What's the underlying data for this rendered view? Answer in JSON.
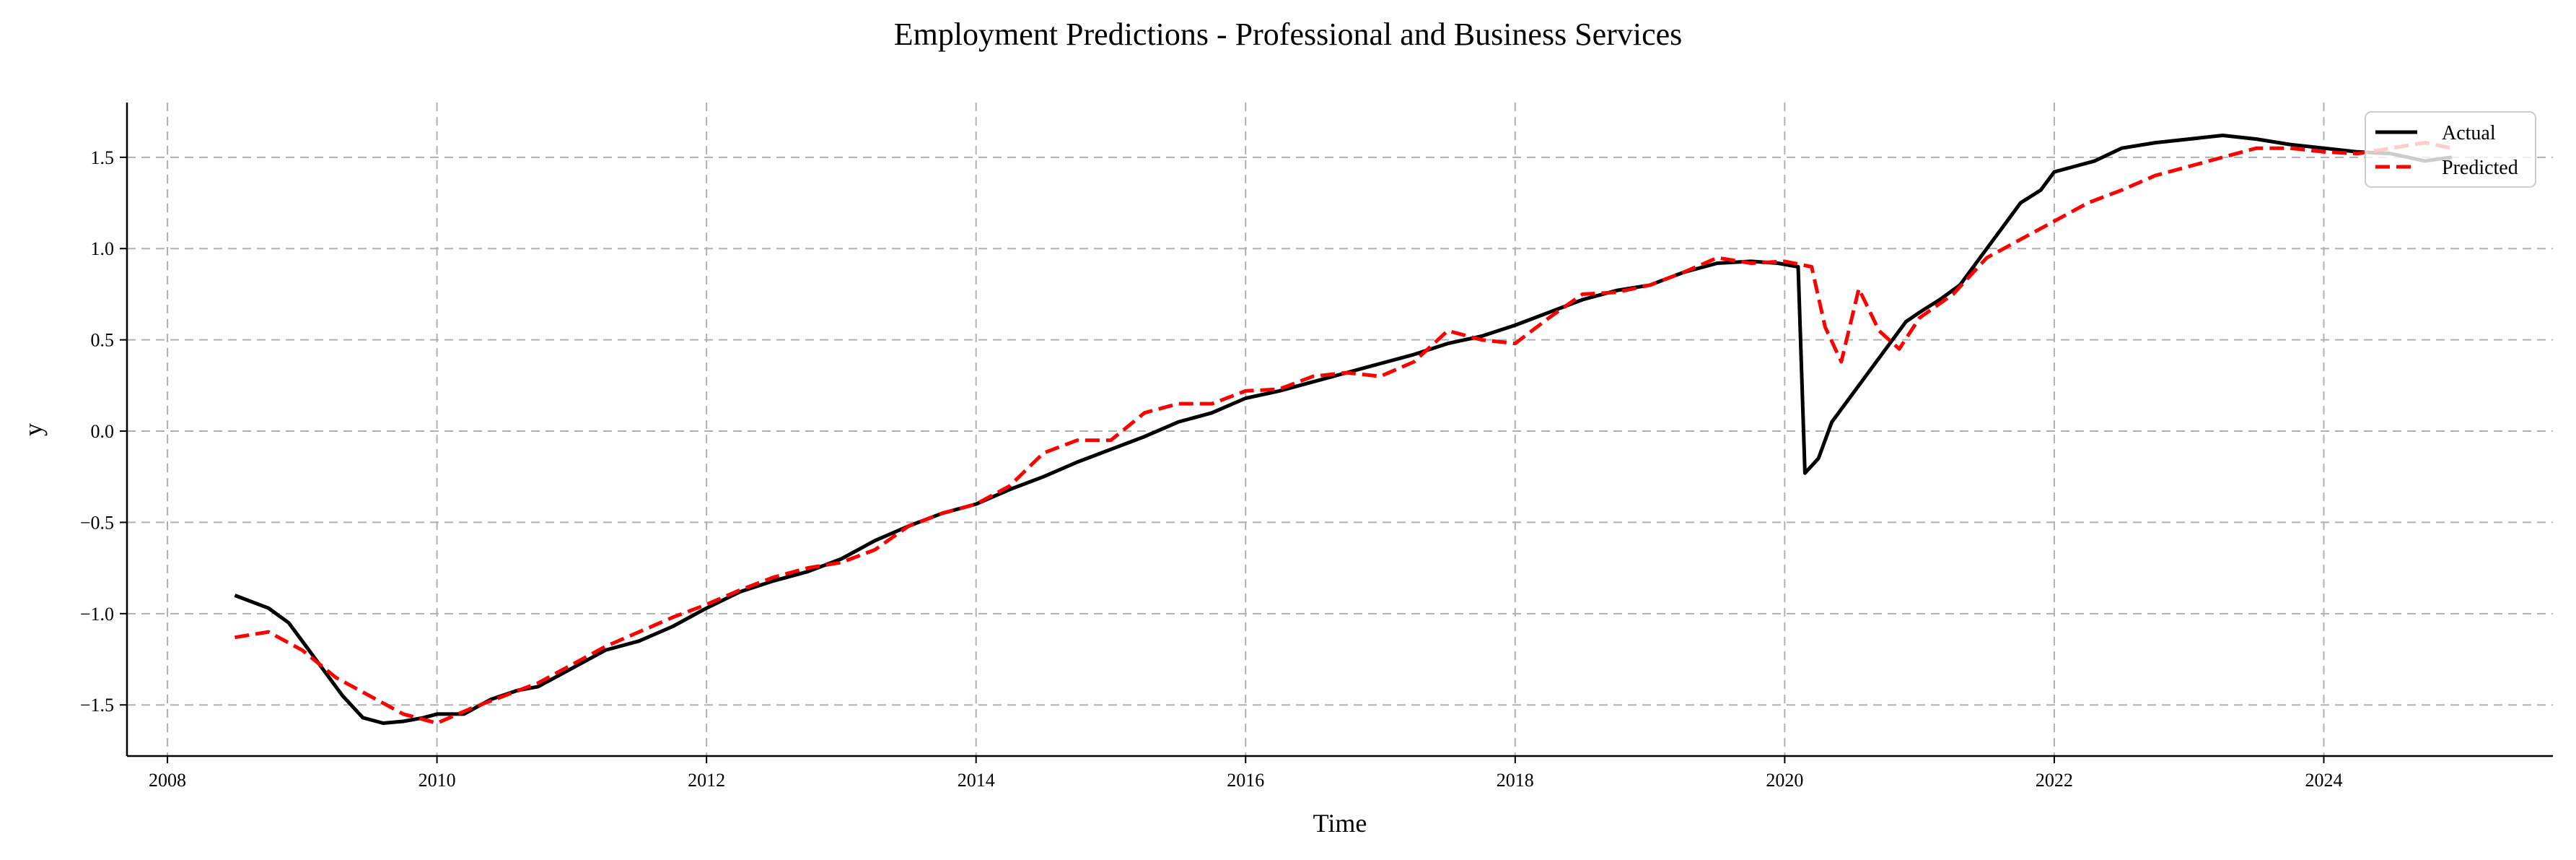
{
  "chart_data": {
    "type": "line",
    "title": "Employment Predictions - Professional and Business Services",
    "xlabel": "Time",
    "ylabel": "y",
    "xlim": [
      2007.7,
      2025.7
    ],
    "ylim": [
      -1.78,
      1.8
    ],
    "x_ticks": [
      2008,
      2010,
      2012,
      2014,
      2016,
      2018,
      2020,
      2022,
      2024
    ],
    "x_tick_labels": [
      "2008",
      "2010",
      "2012",
      "2014",
      "2016",
      "2018",
      "2020",
      "2022",
      "2024"
    ],
    "y_ticks": [
      -1.5,
      -1.0,
      -0.5,
      0.0,
      0.5,
      1.0,
      1.5
    ],
    "y_tick_labels": [
      "−1.5",
      "−1.0",
      "−0.5",
      "0.0",
      "0.5",
      "1.0",
      "1.5"
    ],
    "grid": true,
    "legend_position": "top-right",
    "series": [
      {
        "name": "Actual",
        "color": "#000000",
        "style": "solid",
        "x": [
          2008.5,
          2008.75,
          2008.9,
          2009.0,
          2009.15,
          2009.3,
          2009.45,
          2009.6,
          2009.75,
          2009.9,
          2010.0,
          2010.2,
          2010.4,
          2010.6,
          2010.75,
          2011.0,
          2011.25,
          2011.5,
          2011.75,
          2012.0,
          2012.25,
          2012.5,
          2012.75,
          2013.0,
          2013.25,
          2013.5,
          2013.75,
          2014.0,
          2014.25,
          2014.5,
          2014.75,
          2015.0,
          2015.25,
          2015.5,
          2015.75,
          2016.0,
          2016.25,
          2016.5,
          2016.75,
          2017.0,
          2017.25,
          2017.5,
          2017.75,
          2018.0,
          2018.25,
          2018.5,
          2018.75,
          2019.0,
          2019.25,
          2019.5,
          2019.75,
          2019.95,
          2020.1,
          2020.15,
          2020.25,
          2020.35,
          2020.45,
          2020.6,
          2020.75,
          2020.9,
          2021.0,
          2021.15,
          2021.3,
          2021.5,
          2021.6,
          2021.75,
          2021.9,
          2022.0,
          2022.15,
          2022.3,
          2022.5,
          2022.75,
          2023.0,
          2023.25,
          2023.5,
          2023.75,
          2024.0,
          2024.25,
          2024.5,
          2024.75,
          2024.95
        ],
        "values": [
          -0.9,
          -0.97,
          -1.05,
          -1.15,
          -1.3,
          -1.45,
          -1.57,
          -1.6,
          -1.59,
          -1.57,
          -1.55,
          -1.55,
          -1.47,
          -1.42,
          -1.4,
          -1.3,
          -1.2,
          -1.15,
          -1.07,
          -0.97,
          -0.88,
          -0.82,
          -0.77,
          -0.7,
          -0.6,
          -0.52,
          -0.45,
          -0.4,
          -0.32,
          -0.25,
          -0.17,
          -0.1,
          -0.03,
          0.05,
          0.1,
          0.18,
          0.22,
          0.27,
          0.32,
          0.37,
          0.42,
          0.48,
          0.52,
          0.58,
          0.65,
          0.72,
          0.77,
          0.8,
          0.87,
          0.92,
          0.93,
          0.92,
          0.9,
          -0.23,
          -0.15,
          0.05,
          0.15,
          0.3,
          0.45,
          0.6,
          0.65,
          0.72,
          0.8,
          1.0,
          1.1,
          1.25,
          1.32,
          1.42,
          1.45,
          1.48,
          1.55,
          1.58,
          1.6,
          1.62,
          1.6,
          1.57,
          1.55,
          1.53,
          1.52,
          1.48,
          1.5
        ]
      },
      {
        "name": "Predicted",
        "color": "#ff0000",
        "style": "dashed",
        "x": [
          2008.5,
          2008.75,
          2009.0,
          2009.25,
          2009.5,
          2009.75,
          2010.0,
          2010.25,
          2010.5,
          2010.75,
          2011.0,
          2011.25,
          2011.5,
          2011.75,
          2012.0,
          2012.25,
          2012.5,
          2012.75,
          2013.0,
          2013.25,
          2013.5,
          2013.75,
          2014.0,
          2014.25,
          2014.5,
          2014.75,
          2015.0,
          2015.25,
          2015.5,
          2015.75,
          2016.0,
          2016.25,
          2016.5,
          2016.75,
          2017.0,
          2017.25,
          2017.5,
          2017.75,
          2018.0,
          2018.25,
          2018.5,
          2018.75,
          2019.0,
          2019.25,
          2019.5,
          2019.75,
          2020.0,
          2020.2,
          2020.3,
          2020.42,
          2020.55,
          2020.7,
          2020.85,
          2021.0,
          2021.25,
          2021.5,
          2021.75,
          2022.0,
          2022.25,
          2022.5,
          2022.75,
          2023.0,
          2023.25,
          2023.5,
          2023.75,
          2024.0,
          2024.25,
          2024.5,
          2024.75,
          2024.95
        ],
        "values": [
          -1.13,
          -1.1,
          -1.2,
          -1.35,
          -1.45,
          -1.55,
          -1.6,
          -1.52,
          -1.45,
          -1.38,
          -1.28,
          -1.18,
          -1.1,
          -1.02,
          -0.95,
          -0.87,
          -0.8,
          -0.75,
          -0.72,
          -0.65,
          -0.52,
          -0.45,
          -0.4,
          -0.3,
          -0.12,
          -0.05,
          -0.05,
          0.1,
          0.15,
          0.15,
          0.22,
          0.23,
          0.3,
          0.32,
          0.3,
          0.38,
          0.55,
          0.5,
          0.48,
          0.62,
          0.75,
          0.76,
          0.8,
          0.87,
          0.95,
          0.92,
          0.93,
          0.9,
          0.57,
          0.38,
          0.78,
          0.55,
          0.45,
          0.62,
          0.75,
          0.95,
          1.05,
          1.15,
          1.25,
          1.32,
          1.4,
          1.45,
          1.5,
          1.55,
          1.55,
          1.53,
          1.52,
          1.55,
          1.58,
          1.55
        ]
      }
    ]
  }
}
